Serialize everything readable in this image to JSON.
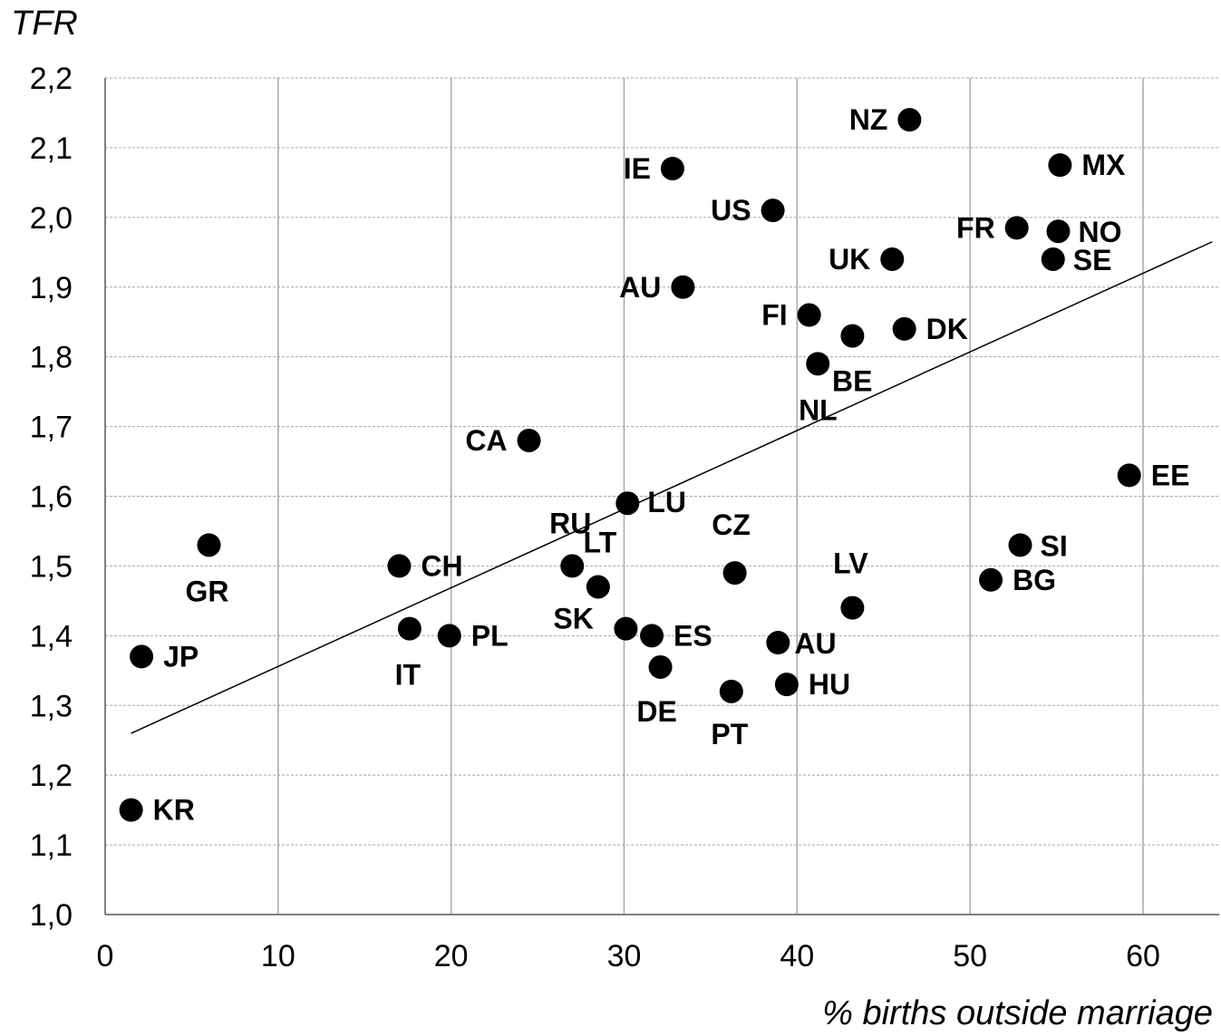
{
  "chart_data": {
    "type": "scatter",
    "title": "",
    "xlabel": "% births outside marriage",
    "ylabel": "TFR",
    "xlim": [
      0,
      64
    ],
    "ylim": [
      1.0,
      2.2
    ],
    "x_ticks": [
      0,
      10,
      20,
      30,
      40,
      50,
      60
    ],
    "x_tick_labels": [
      "0",
      "10",
      "20",
      "30",
      "40",
      "50",
      "60"
    ],
    "y_ticks": [
      1.0,
      1.1,
      1.2,
      1.3,
      1.4,
      1.5,
      1.6,
      1.7,
      1.8,
      1.9,
      2.0,
      2.1,
      2.2
    ],
    "y_tick_labels": [
      "1,0",
      "1,1",
      "1,2",
      "1,3",
      "1,4",
      "1,5",
      "1,6",
      "1,7",
      "1,8",
      "1,9",
      "2,0",
      "2,1",
      "2,2"
    ],
    "grid": true,
    "marker_color": "#000000",
    "trendline": {
      "x": [
        1.5,
        64
      ],
      "y": [
        1.26,
        1.965
      ]
    },
    "points": [
      {
        "label": "NZ",
        "x": 46.5,
        "y": 2.14
      },
      {
        "label": "IE",
        "x": 32.8,
        "y": 2.07
      },
      {
        "label": "MX",
        "x": 55.2,
        "y": 2.075
      },
      {
        "label": "US",
        "x": 38.6,
        "y": 2.01
      },
      {
        "label": "FR",
        "x": 52.7,
        "y": 1.985
      },
      {
        "label": "NO",
        "x": 55.1,
        "y": 1.98
      },
      {
        "label": "UK",
        "x": 45.5,
        "y": 1.94
      },
      {
        "label": "SE",
        "x": 54.8,
        "y": 1.94
      },
      {
        "label": "AU",
        "x": 33.4,
        "y": 1.9
      },
      {
        "label": "FI",
        "x": 40.7,
        "y": 1.86
      },
      {
        "label": "DK",
        "x": 46.2,
        "y": 1.84
      },
      {
        "label": "NL",
        "x": 43.2,
        "y": 1.83
      },
      {
        "label": "BE",
        "x": 41.2,
        "y": 1.79
      },
      {
        "label": "CA",
        "x": 24.5,
        "y": 1.68
      },
      {
        "label": "EE",
        "x": 59.2,
        "y": 1.63
      },
      {
        "label": "LU",
        "x": 30.2,
        "y": 1.59
      },
      {
        "label": "GR",
        "x": 6.0,
        "y": 1.53
      },
      {
        "label": "SI",
        "x": 52.9,
        "y": 1.53
      },
      {
        "label": "CH",
        "x": 17.0,
        "y": 1.5
      },
      {
        "label": "RU",
        "x": 27.0,
        "y": 1.5
      },
      {
        "label": "CZ",
        "x": 36.4,
        "y": 1.49
      },
      {
        "label": "BG",
        "x": 51.2,
        "y": 1.48
      },
      {
        "label": "LT",
        "x": 28.5,
        "y": 1.47
      },
      {
        "label": "LV",
        "x": 43.2,
        "y": 1.44
      },
      {
        "label": "IT",
        "x": 17.6,
        "y": 1.41
      },
      {
        "label": "SK",
        "x": 30.1,
        "y": 1.41
      },
      {
        "label": "PL",
        "x": 19.9,
        "y": 1.4
      },
      {
        "label": "ES",
        "x": 31.6,
        "y": 1.4
      },
      {
        "label": "AU",
        "x": 38.9,
        "y": 1.39
      },
      {
        "label": "JP",
        "x": 2.1,
        "y": 1.37
      },
      {
        "label": "DE",
        "x": 32.1,
        "y": 1.355
      },
      {
        "label": "HU",
        "x": 39.4,
        "y": 1.33
      },
      {
        "label": "PT",
        "x": 36.2,
        "y": 1.32
      },
      {
        "label": "KR",
        "x": 1.5,
        "y": 1.15
      }
    ]
  }
}
